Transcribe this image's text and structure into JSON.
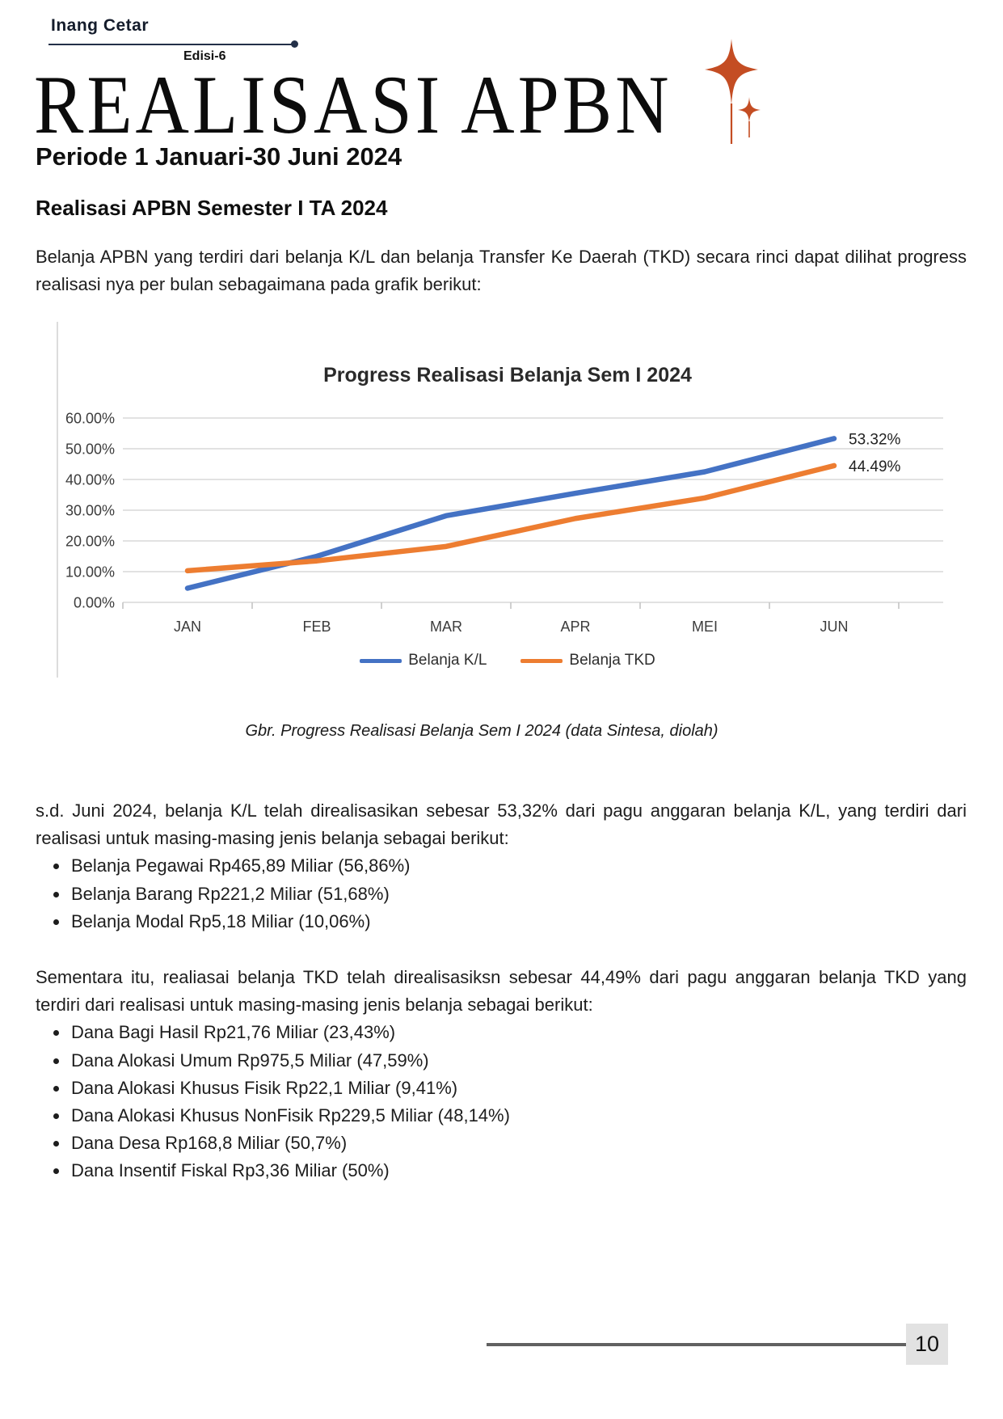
{
  "header": {
    "brand": "Inang Cetar",
    "edition": "Edisi-6"
  },
  "masthead": {
    "title": "REALISASI APBN",
    "subtitle": "Periode 1 Januari-30 Juni 2024"
  },
  "article": {
    "section_heading": "Realisasi APBN Semester I TA 2024",
    "intro": "Belanja APBN yang terdiri dari belanja K/L dan belanja Transfer Ke Daerah (TKD) secara rinci dapat dilihat progress realisasi nya per bulan sebagaimana pada grafik berikut:",
    "kl_paragraph": "s.d. Juni 2024, belanja K/L telah direalisasikan sebesar 53,32% dari pagu anggaran belanja K/L, yang terdiri dari realisasi untuk masing-masing jenis belanja sebagai berikut:",
    "kl_items": [
      "Belanja Pegawai Rp465,89 Miliar (56,86%)",
      "Belanja Barang Rp221,2 Miliar (51,68%)",
      "Belanja Modal Rp5,18 Miliar (10,06%)"
    ],
    "tkd_paragraph": "Sementara itu, realiasai belanja TKD telah direalisasiksn sebesar 44,49% dari pagu anggaran belanja TKD yang terdiri dari realisasi untuk masing-masing jenis belanja sebagai berikut:",
    "tkd_items": [
      "Dana Bagi Hasil Rp21,76 Miliar (23,43%)",
      "Dana Alokasi Umum Rp975,5 Miliar (47,59%)",
      "Dana Alokasi Khusus Fisik Rp22,1 Miliar (9,41%)",
      "Dana Alokasi Khusus NonFisik Rp229,5 Miliar (48,14%)",
      "Dana Desa Rp168,8 Miliar (50,7%)",
      "Dana Insentif Fiskal Rp3,36 Miliar (50%)"
    ]
  },
  "figure": {
    "caption": "Gbr. Progress Realisasi Belanja Sem I 2024 (data Sintesa, diolah)"
  },
  "footer": {
    "page_number": "10"
  },
  "colors": {
    "sparkle_accent": "#C44D23",
    "header_navy": "#233048",
    "line_belanja_kl": "#4472C4",
    "line_belanja_tkd": "#ED7D31",
    "gridline": "#D8D8D8",
    "page_box_bg": "#E2E2E2"
  },
  "chart_data": {
    "type": "line",
    "title": "Progress Realisasi Belanja Sem I 2024",
    "categories": [
      "JAN",
      "FEB",
      "MAR",
      "APR",
      "MEI",
      "JUN"
    ],
    "series": [
      {
        "name": "Belanja K/L",
        "color": "#4472C4",
        "values": [
          4.6,
          15.0,
          28.2,
          35.5,
          42.5,
          53.32
        ],
        "end_label": "53.32%"
      },
      {
        "name": "Belanja TKD",
        "color": "#ED7D31",
        "values": [
          10.3,
          13.5,
          18.2,
          27.3,
          34.0,
          44.49
        ],
        "end_label": "44.49%"
      }
    ],
    "y_ticks": [
      "60.00%",
      "50.00%",
      "40.00%",
      "30.00%",
      "20.00%",
      "10.00%",
      "0.00%"
    ],
    "ylim": [
      0,
      60
    ],
    "grid": true,
    "legend_position": "bottom"
  }
}
